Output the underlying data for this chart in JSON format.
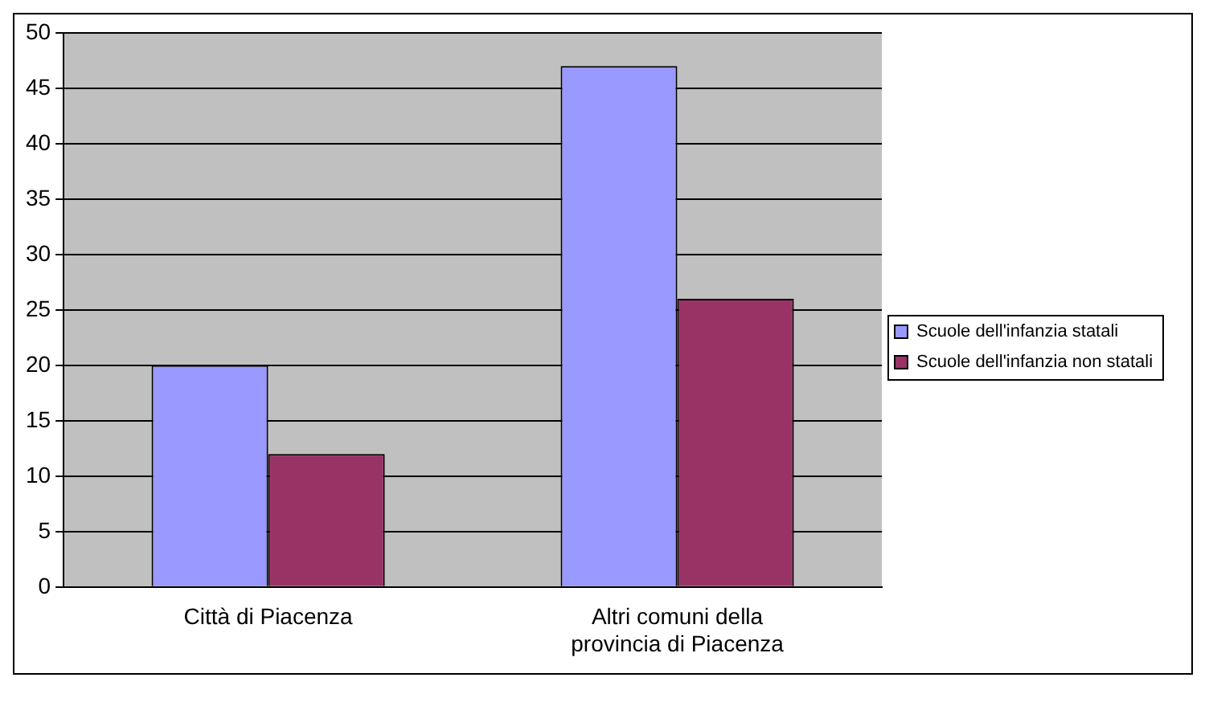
{
  "chart_data": {
    "type": "bar",
    "categories": [
      "Città di Piacenza",
      "Altri comuni della provincia di Piacenza"
    ],
    "series": [
      {
        "name": "Scuole dell'infanzia statali",
        "color": "#9999ff",
        "values": [
          20,
          47
        ]
      },
      {
        "name": "Scuole dell'infanzia non statali",
        "color": "#993366",
        "values": [
          12,
          26
        ]
      }
    ],
    "ylim": [
      0,
      50
    ],
    "yticks": [
      0,
      5,
      10,
      15,
      20,
      25,
      30,
      35,
      40,
      45,
      50
    ],
    "grid": "y",
    "legend": "right"
  }
}
